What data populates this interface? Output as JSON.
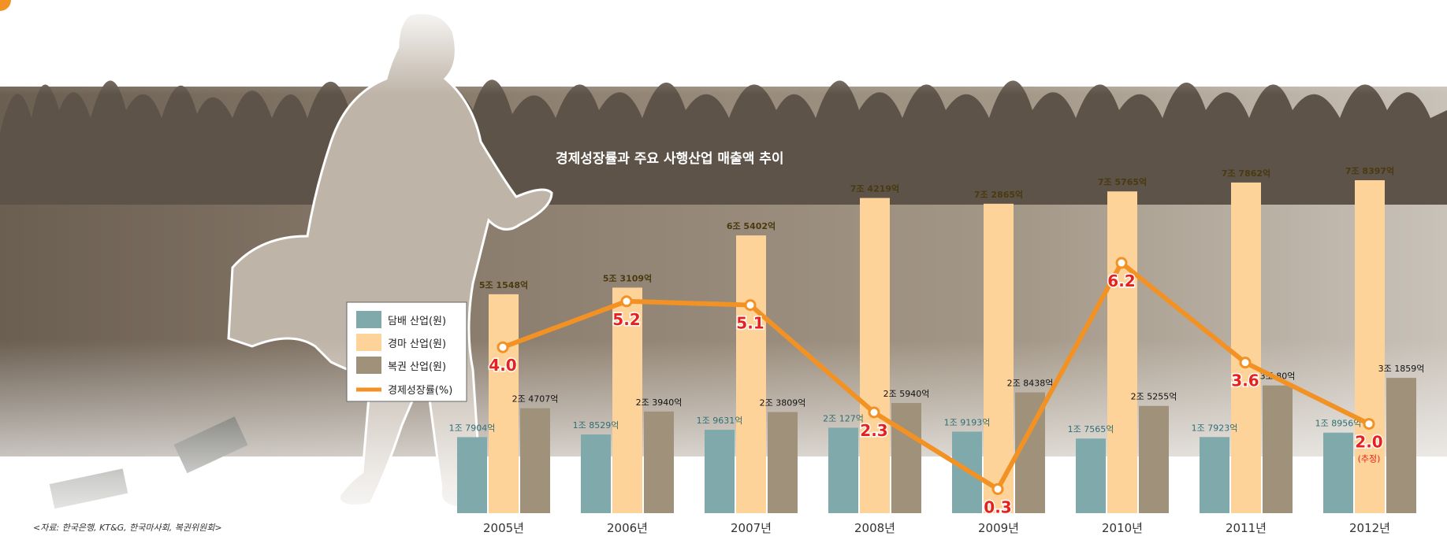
{
  "chart_data": {
    "type": "bar",
    "title": "경제성장률과 주요 사행산업 매출액 추이",
    "source": "<자료: 한국은행, KT&G, 한국마사회, 복권위원회>",
    "categories": [
      "2005년",
      "2006년",
      "2007년",
      "2008년",
      "2009년",
      "2010년",
      "2011년",
      "2012년"
    ],
    "series": [
      {
        "name": "담배 산업(원)",
        "color": "#7fa9ab",
        "values": [
          17904,
          18529,
          19631,
          20127,
          19193,
          17565,
          17923,
          18956
        ],
        "labels": [
          "1조 7904억",
          "1조 8529억",
          "1조 9631억",
          "2조 127억",
          "1조 9193억",
          "1조 7565억",
          "1조 7923억",
          "1조 8956억"
        ]
      },
      {
        "name": "경마 산업(원)",
        "color": "#fdd399",
        "values": [
          51548,
          53109,
          65402,
          74219,
          72865,
          75765,
          77862,
          78397
        ],
        "labels": [
          "5조 1548억",
          "5조 3109억",
          "6조 5402억",
          "7조 4219억",
          "7조 2865억",
          "7조 5765억",
          "7조 7862억",
          "7조 8397억"
        ]
      },
      {
        "name": "복권 산업(원)",
        "color": "#a0927a",
        "values": [
          24707,
          23940,
          23809,
          25940,
          28438,
          25255,
          30080,
          31859
        ],
        "labels": [
          "2조 4707억",
          "2조 3940억",
          "2조 3809억",
          "2조 5940억",
          "2조 8438억",
          "2조 5255억",
          "3조 80억",
          "3조 1859억"
        ]
      }
    ],
    "line": {
      "name": "경제성장률(%)",
      "color": "#f39224",
      "values": [
        4.0,
        5.2,
        5.1,
        2.3,
        0.3,
        6.2,
        3.6,
        2.0
      ],
      "labels": [
        "4.0",
        "5.2",
        "5.1",
        "2.3",
        "0.3",
        "6.2",
        "3.6",
        "2.0"
      ],
      "note_2012": "(추정)"
    },
    "grid": false,
    "legend_position": "left"
  }
}
